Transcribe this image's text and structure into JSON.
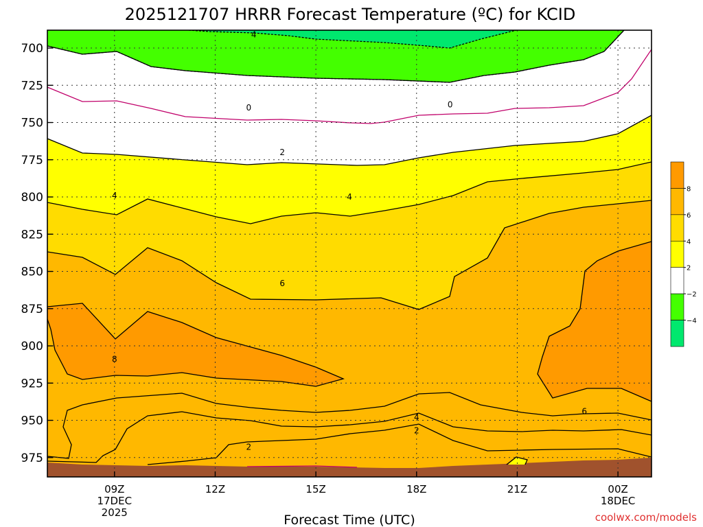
{
  "chart_data": {
    "type": "heatmap",
    "title": "2025121707 HRRR Forecast Temperature (ºC) for KCID",
    "xlabel": "Forecast Time (UTC)",
    "credit": "coolwx.com/models",
    "xlim": [
      7,
      25
    ],
    "ylim": [
      688,
      988
    ],
    "y_scale": "pressure (inverted)",
    "y_ticks": [
      700,
      725,
      750,
      775,
      800,
      825,
      850,
      875,
      900,
      925,
      950,
      975
    ],
    "x_ticks": [
      {
        "hour": 9,
        "lines": [
          "09Z",
          "17DEC",
          "2025"
        ]
      },
      {
        "hour": 12,
        "lines": [
          "12Z"
        ]
      },
      {
        "hour": 15,
        "lines": [
          "15Z"
        ]
      },
      {
        "hour": 18,
        "lines": [
          "18Z"
        ]
      },
      {
        "hour": 21,
        "lines": [
          "21Z"
        ]
      },
      {
        "hour": 24,
        "lines": [
          "00Z",
          "18DEC"
        ]
      }
    ],
    "grid": true,
    "legend": "right colorbar",
    "colorbar": {
      "bins": [
        {
          "from": -6,
          "to": -4,
          "color": "#00e86e"
        },
        {
          "from": -4,
          "to": -2,
          "color": "#44ff00"
        },
        {
          "from": -2,
          "to": 2,
          "color": "#ffffff"
        },
        {
          "from": 2,
          "to": 4,
          "color": "#ffff00"
        },
        {
          "from": 4,
          "to": 6,
          "color": "#ffdc00"
        },
        {
          "from": 6,
          "to": 8,
          "color": "#ffb800"
        },
        {
          "from": 8,
          "to": 10,
          "color": "#ff9a00"
        }
      ],
      "tick_labels": [
        "8",
        "6",
        "4",
        "2",
        "−2",
        "−4"
      ]
    },
    "terrain_color": "#a0522d",
    "contour_labels": [
      {
        "text": "4",
        "hour": 13.15,
        "p": 691
      },
      {
        "text": "0",
        "hour": 13.0,
        "p": 740
      },
      {
        "text": "0",
        "hour": 19.0,
        "p": 738
      },
      {
        "text": "2",
        "hour": 14.0,
        "p": 770
      },
      {
        "text": "4",
        "hour": 9.0,
        "p": 799
      },
      {
        "text": "4",
        "hour": 16.0,
        "p": 800
      },
      {
        "text": "6",
        "hour": 14.0,
        "p": 858
      },
      {
        "text": "8",
        "hour": 9.0,
        "p": 909
      },
      {
        "text": "4",
        "hour": 18.0,
        "p": 948
      },
      {
        "text": "2",
        "hour": 18.0,
        "p": 957
      },
      {
        "text": "6",
        "hour": 23.0,
        "p": 944
      },
      {
        "text": "2",
        "hour": 13.0,
        "p": 968
      }
    ]
  }
}
